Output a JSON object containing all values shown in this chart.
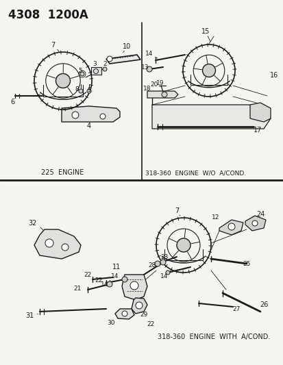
{
  "bg_color": "#f5f5f0",
  "line_color": "#1a1a1a",
  "text_color": "#1a1a1a",
  "header": "4308  1200A",
  "label_225": "225  ENGINE",
  "label_318wo": "318-360  ENGINE  W/O  A/COND.",
  "label_318w": "318-360  ENGINE  WITH  A/COND.",
  "figsize": [
    4.14,
    5.33
  ],
  "dpi": 100
}
